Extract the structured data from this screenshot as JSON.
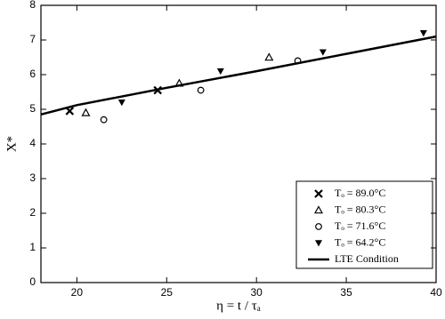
{
  "chart_data": {
    "type": "scatter",
    "xlabel": "η = t / τₐ",
    "ylabel": "X*",
    "xlim": [
      18,
      40
    ],
    "xticks": [
      20,
      25,
      30,
      35,
      40
    ],
    "ylim": [
      0,
      8
    ],
    "yticks": [
      0,
      1,
      2,
      3,
      4,
      5,
      6,
      7,
      8
    ],
    "legend": "lower right",
    "series": [
      {
        "name": "Tₒ = 89.0°C",
        "color": "#000000",
        "marker": "x",
        "x": [
          19.6,
          24.5
        ],
        "values": [
          4.95,
          5.55
        ]
      },
      {
        "name": "Tₒ = 80.3°C",
        "color": "#000000",
        "marker": "triangle-up",
        "x": [
          20.5,
          25.7,
          30.7
        ],
        "values": [
          4.9,
          5.75,
          6.5
        ]
      },
      {
        "name": "Tₒ = 71.6°C",
        "color": "#000000",
        "marker": "circle",
        "x": [
          21.5,
          26.9,
          32.3
        ],
        "values": [
          4.7,
          5.55,
          6.4
        ]
      },
      {
        "name": "Tₒ = 64.2°C",
        "color": "#000000",
        "marker": "triangle-down",
        "x": [
          22.5,
          28,
          33.7,
          39.3
        ],
        "values": [
          5.2,
          6.1,
          6.65,
          7.2
        ]
      },
      {
        "name": "LTE Condition",
        "color": "#000000",
        "marker": "line",
        "x": [
          18,
          20,
          25,
          30,
          35,
          40
        ],
        "values": [
          4.85,
          5.12,
          5.62,
          6.1,
          6.6,
          7.1
        ]
      }
    ]
  }
}
